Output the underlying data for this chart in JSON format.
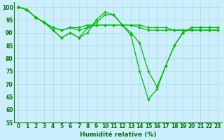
{
  "background_color": "#cceeff",
  "grid_color": "#aaddcc",
  "line_color": "#00bb00",
  "marker_color": "#00bb00",
  "xlabel": "Humidité relative (%)",
  "xlabel_fontsize": 6.5,
  "tick_fontsize": 5.5,
  "ylim": [
    55,
    102
  ],
  "xlim": [
    -0.5,
    23.5
  ],
  "yticks": [
    55,
    60,
    65,
    70,
    75,
    80,
    85,
    90,
    95,
    100
  ],
  "xticks": [
    0,
    1,
    2,
    3,
    4,
    5,
    6,
    7,
    8,
    9,
    10,
    11,
    12,
    13,
    14,
    15,
    16,
    17,
    18,
    19,
    20,
    21,
    22,
    23
  ],
  "series": [
    [
      100,
      99,
      96,
      94,
      91,
      88,
      90,
      88,
      90,
      95,
      98,
      97,
      93,
      89,
      75,
      64,
      68,
      77,
      85,
      90,
      92,
      92,
      92,
      92
    ],
    [
      100,
      99,
      96,
      94,
      91,
      88,
      90,
      88,
      92,
      94,
      97,
      97,
      93,
      90,
      86,
      75,
      69,
      77,
      85,
      90,
      92,
      92,
      92,
      92
    ],
    [
      100,
      99,
      96,
      94,
      92,
      91,
      92,
      91,
      92,
      93,
      93,
      93,
      93,
      93,
      92,
      91,
      91,
      91,
      91,
      91,
      91,
      91,
      91,
      91
    ],
    [
      100,
      99,
      96,
      94,
      92,
      91,
      92,
      92,
      93,
      93,
      93,
      93,
      93,
      93,
      93,
      92,
      92,
      92,
      91,
      91,
      91,
      91,
      91,
      91
    ]
  ]
}
